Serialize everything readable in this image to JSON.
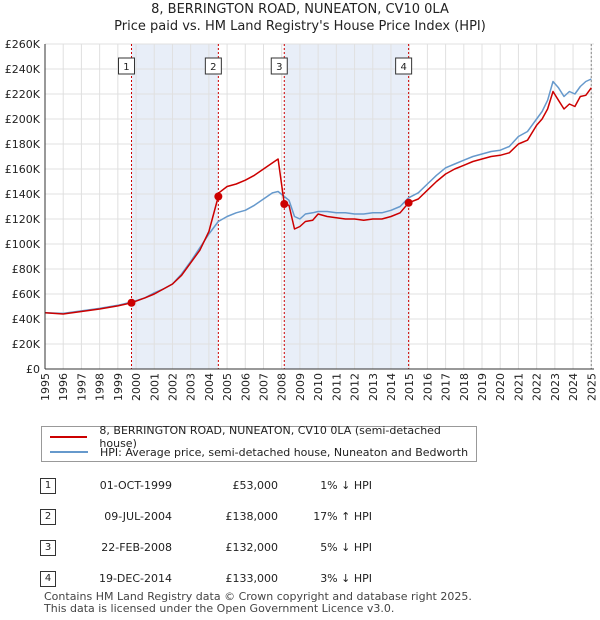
{
  "title_line1": "8, BERRINGTON ROAD, NUNEATON, CV10 0LA",
  "title_line2": "Price paid vs. HM Land Registry's House Price Index (HPI)",
  "chart_data": {
    "type": "line",
    "title": "8, BERRINGTON ROAD, NUNEATON, CV10 0LA — Price paid vs. HM Land Registry's House Price Index (HPI)",
    "xlim": [
      1995,
      2025.15
    ],
    "ylim": [
      0,
      260000
    ],
    "x_ticks": [
      1995,
      1996,
      1997,
      1998,
      1999,
      2000,
      2001,
      2002,
      2003,
      2004,
      2005,
      2006,
      2007,
      2008,
      2009,
      2010,
      2011,
      2012,
      2013,
      2014,
      2015,
      2016,
      2017,
      2018,
      2019,
      2020,
      2021,
      2022,
      2023,
      2024,
      2025
    ],
    "y_ticks": [
      0,
      20000,
      40000,
      60000,
      80000,
      100000,
      120000,
      140000,
      160000,
      180000,
      200000,
      220000,
      240000,
      260000
    ],
    "y_tick_labels": [
      "£0",
      "£20K",
      "£40K",
      "£60K",
      "£80K",
      "£100K",
      "£120K",
      "£140K",
      "£160K",
      "£180K",
      "£200K",
      "£220K",
      "£240K",
      "£260K"
    ],
    "colors": {
      "property": "#cc0000",
      "hpi": "#6699cc",
      "shade": "#e8eef8",
      "vline": "#cc0000",
      "grid": "#e0e0e0"
    },
    "series": [
      {
        "name": "8, BERRINGTON ROAD, NUNEATON, CV10 0LA (semi-detached house)",
        "color": "#cc0000",
        "x": [
          1995,
          1996,
          1997,
          1998,
          1999.0,
          1999.75,
          2000.5,
          2001,
          2001.5,
          2002,
          2002.5,
          2003,
          2003.5,
          2004.0,
          2004.52,
          2004.55,
          2005,
          2005.5,
          2006,
          2006.5,
          2007,
          2007.5,
          2007.8,
          2008.14,
          2008.4,
          2008.7,
          2009,
          2009.3,
          2009.7,
          2010,
          2010.5,
          2011,
          2011.5,
          2012,
          2012.5,
          2013,
          2013.5,
          2014,
          2014.5,
          2014.97,
          2015.5,
          2016,
          2016.5,
          2017,
          2017.5,
          2018,
          2018.5,
          2019,
          2019.5,
          2020,
          2020.5,
          2021,
          2021.5,
          2022,
          2022.3,
          2022.6,
          2022.9,
          2023.2,
          2023.5,
          2023.8,
          2024.1,
          2024.4,
          2024.7,
          2025.0
        ],
        "y": [
          45000,
          44000,
          46000,
          48000,
          50500,
          53000,
          57000,
          60000,
          64000,
          68000,
          75000,
          85000,
          95000,
          110000,
          138000,
          141000,
          146000,
          148000,
          151000,
          155000,
          160000,
          165000,
          168000,
          132000,
          131000,
          112000,
          114000,
          118000,
          119000,
          124000,
          122000,
          121000,
          120000,
          120000,
          119000,
          120000,
          120000,
          122000,
          125000,
          133000,
          136000,
          143000,
          150000,
          156000,
          160000,
          163000,
          166000,
          168000,
          170000,
          171000,
          173000,
          180000,
          183000,
          195000,
          200000,
          208000,
          222000,
          215000,
          208000,
          212000,
          210000,
          218000,
          219000,
          225000
        ]
      },
      {
        "name": "HPI: Average price, semi-detached house, Nuneaton and Bedworth",
        "color": "#6699cc",
        "x": [
          1995,
          1996,
          1997,
          1998,
          1999.0,
          1999.75,
          2000.5,
          2001,
          2001.5,
          2002,
          2002.5,
          2003,
          2003.5,
          2004.0,
          2004.52,
          2005,
          2005.5,
          2006,
          2006.5,
          2007,
          2007.5,
          2007.8,
          2008.14,
          2008.4,
          2008.7,
          2009,
          2009.3,
          2009.7,
          2010,
          2010.5,
          2011,
          2011.5,
          2012,
          2012.5,
          2013,
          2013.5,
          2014,
          2014.5,
          2014.97,
          2015.5,
          2016,
          2016.5,
          2017,
          2017.5,
          2018,
          2018.5,
          2019,
          2019.5,
          2020,
          2020.5,
          2021,
          2021.5,
          2022,
          2022.3,
          2022.6,
          2022.9,
          2023.2,
          2023.5,
          2023.8,
          2024.1,
          2024.4,
          2024.7,
          2025.0
        ],
        "y": [
          45000,
          44500,
          46500,
          48500,
          51000,
          53500,
          57000,
          61000,
          64000,
          68000,
          76000,
          86000,
          97000,
          108000,
          118000,
          122000,
          125000,
          127000,
          131000,
          136000,
          141000,
          142000,
          138000,
          135000,
          122000,
          120000,
          124000,
          125000,
          126000,
          126000,
          125000,
          125000,
          124000,
          124000,
          125000,
          125000,
          127000,
          130000,
          137000,
          141000,
          148000,
          155000,
          161000,
          164000,
          167000,
          170000,
          172000,
          174000,
          175000,
          178000,
          186000,
          190000,
          200000,
          206000,
          215000,
          230000,
          225000,
          218000,
          222000,
          220000,
          226000,
          230000,
          232000
        ]
      }
    ],
    "sales": [
      {
        "label": "1",
        "x": 1999.75,
        "value": 53000
      },
      {
        "label": "2",
        "x": 2004.52,
        "value": 138000
      },
      {
        "label": "3",
        "x": 2008.14,
        "value": 132000
      },
      {
        "label": "4",
        "x": 2014.97,
        "value": 133000
      }
    ],
    "shaded_spans": [
      [
        1999.75,
        2004.52
      ],
      [
        2008.14,
        2014.97
      ]
    ],
    "extra_vline_x": 2025.0
  },
  "legend": {
    "property_label": "8, BERRINGTON ROAD, NUNEATON, CV10 0LA (semi-detached house)",
    "hpi_label": "HPI: Average price, semi-detached house, Nuneaton and Bedworth"
  },
  "sales_table": [
    {
      "num": "1",
      "date": "01-OCT-1999",
      "price": "£53,000",
      "hpi": "1% ↓ HPI"
    },
    {
      "num": "2",
      "date": "09-JUL-2004",
      "price": "£138,000",
      "hpi": "17% ↑ HPI"
    },
    {
      "num": "3",
      "date": "22-FEB-2008",
      "price": "£132,000",
      "hpi": "5% ↓ HPI"
    },
    {
      "num": "4",
      "date": "19-DEC-2014",
      "price": "£133,000",
      "hpi": "3% ↓ HPI"
    }
  ],
  "footer_line1": "Contains HM Land Registry data © Crown copyright and database right 2025.",
  "footer_line2": "This data is licensed under the Open Government Licence v3.0."
}
